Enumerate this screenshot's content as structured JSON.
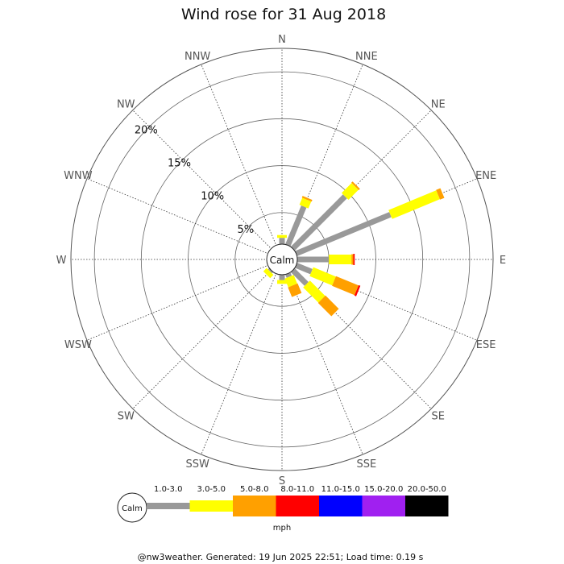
{
  "title": "Wind rose for 31 Aug 2018",
  "calm_label": "Calm",
  "unit": "mph",
  "footer": "@nw3weather. Generated: 19 Jun 2025 22:51; Load time: 0.19 s",
  "chart_data": {
    "type": "wind-rose",
    "title": "Wind rose for 31 Aug 2018",
    "directions": [
      "N",
      "NNE",
      "NE",
      "ENE",
      "E",
      "ESE",
      "SE",
      "SSE",
      "S",
      "SSW",
      "SW",
      "WSW",
      "W",
      "WNW",
      "NW",
      "NNW"
    ],
    "radial_ticks": [
      "5%",
      "10%",
      "15%",
      "20%"
    ],
    "radial_values": [
      5,
      10,
      15,
      20
    ],
    "speed_bins": [
      {
        "label": "1.0-3.0",
        "color": "#999999"
      },
      {
        "label": "3.0-5.0",
        "color": "#ffff00"
      },
      {
        "label": "5.0-8.0",
        "color": "#ffa000"
      },
      {
        "label": "8.0-11.0",
        "color": "#ff0000"
      },
      {
        "label": "11.0-15.0",
        "color": "#0000ff"
      },
      {
        "label": "15.0-20.0",
        "color": "#a020f0"
      },
      {
        "label": "20.0-50.0",
        "color": "#000000"
      }
    ],
    "unit": "mph",
    "rmax_percent": 22.5,
    "calm_radius_percent": 1.3,
    "series_cumulative_percent": {
      "N": [
        2.3,
        2.6,
        2.6,
        2.6
      ],
      "NNE": [
        6.1,
        6.9,
        7.1,
        7.1
      ],
      "NE": [
        9.5,
        11.0,
        11.2,
        11.2
      ],
      "ENE": [
        12.5,
        18.0,
        18.5,
        18.5
      ],
      "E": [
        5.0,
        7.4,
        7.6,
        7.75
      ],
      "ESE": [
        3.4,
        6.0,
        8.6,
        8.8
      ],
      "SE": [
        3.7,
        6.0,
        8.0,
        8.0
      ],
      "SSE": [
        2.0,
        3.0,
        4.1,
        4.1
      ],
      "S": [
        2.2,
        2.6,
        2.6,
        2.6
      ],
      "SSW": [
        1.7,
        1.7,
        1.7,
        1.7
      ],
      "SW": [
        1.8,
        2.3,
        2.3,
        2.3
      ],
      "WSW": [
        1.3,
        1.4,
        1.4,
        1.4
      ],
      "W": [
        0,
        0,
        0,
        0
      ],
      "WNW": [
        0,
        0,
        0,
        0
      ],
      "NW": [
        0,
        0,
        0,
        0
      ],
      "NNW": [
        0,
        0,
        0,
        0
      ]
    }
  }
}
